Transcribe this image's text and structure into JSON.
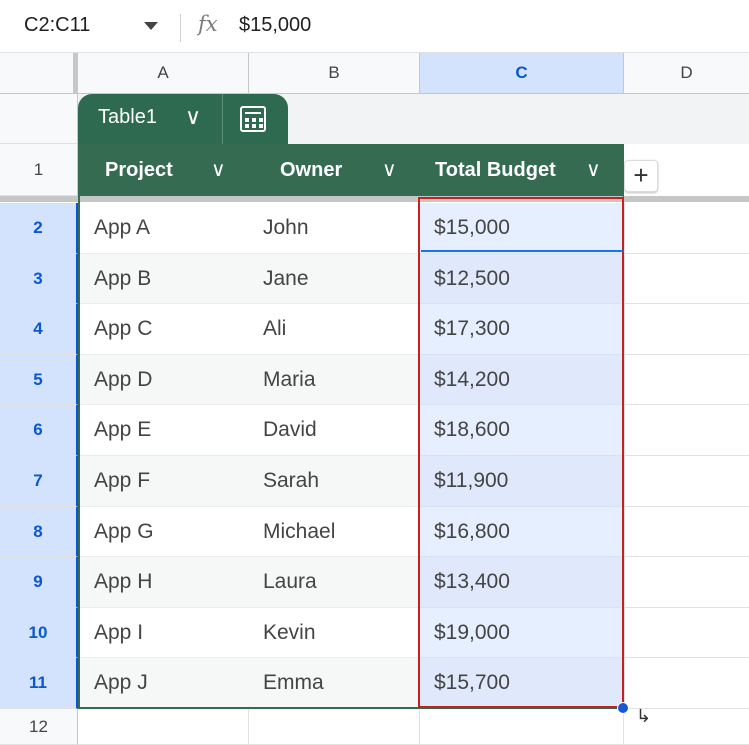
{
  "formula_bar": {
    "name_box": "C2:C11",
    "fx_label": "fx",
    "formula_value": "$15,000"
  },
  "columns": [
    "A",
    "B",
    "C",
    "D"
  ],
  "table": {
    "name": "Table1",
    "headers": [
      "Project",
      "Owner",
      "Total Budget"
    ],
    "rows": [
      {
        "row": "2",
        "project": "App A",
        "owner": "John",
        "budget": "$15,000"
      },
      {
        "row": "3",
        "project": "App B",
        "owner": "Jane",
        "budget": "$12,500"
      },
      {
        "row": "4",
        "project": "App C",
        "owner": "Ali",
        "budget": "$17,300"
      },
      {
        "row": "5",
        "project": "App D",
        "owner": "Maria",
        "budget": "$14,200"
      },
      {
        "row": "6",
        "project": "App E",
        "owner": "David",
        "budget": "$18,600"
      },
      {
        "row": "7",
        "project": "App F",
        "owner": "Sarah",
        "budget": "$11,900"
      },
      {
        "row": "8",
        "project": "App G",
        "owner": "Michael",
        "budget": "$16,800"
      },
      {
        "row": "9",
        "project": "App H",
        "owner": "Laura",
        "budget": "$13,400"
      },
      {
        "row": "10",
        "project": "App I",
        "owner": "Kevin",
        "budget": "$19,000"
      },
      {
        "row": "11",
        "project": "App J",
        "owner": "Emma",
        "budget": "$15,700"
      }
    ]
  },
  "row_labels": {
    "header_row": "1",
    "last_row": "12"
  },
  "add_column_label": "+",
  "colors": {
    "table_green": "#356c51",
    "selection_red": "#c5221f",
    "selection_blue": "#d3e3fd"
  }
}
